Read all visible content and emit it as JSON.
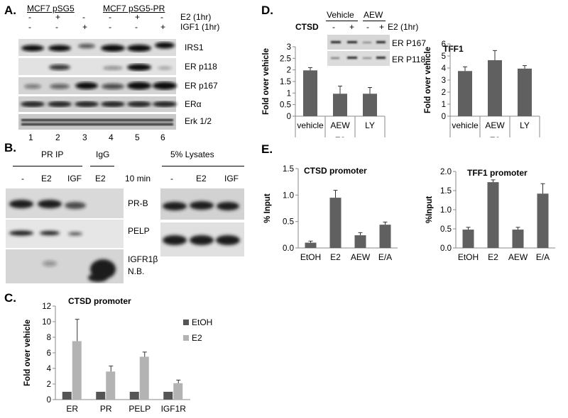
{
  "panelA": {
    "letter": "A.",
    "group1": "MCF7 pSG5",
    "group2": "MCF7 pSG5-PR",
    "row_e2_label": "E2 (1hr)",
    "row_igf_label": "IGF1 (1hr)",
    "e2_signs": [
      "-",
      "+",
      "-",
      "-",
      "+",
      "-"
    ],
    "igf_signs": [
      "-",
      "-",
      "+",
      "-",
      "-",
      "+"
    ],
    "bands": [
      "IRS1",
      "ER p118",
      "ER p167",
      "ERα",
      "Erk 1/2"
    ],
    "lanes": [
      "1",
      "2",
      "3",
      "4",
      "5",
      "6"
    ]
  },
  "panelB": {
    "letter": "B.",
    "pr_ip": "PR IP",
    "igg": "IgG",
    "lysates": "5% Lysates",
    "ip_lanes": [
      "-",
      "E2",
      "IGF"
    ],
    "igg_lane": "E2",
    "time": "10 min",
    "lys_lanes": [
      "-",
      "E2",
      "IGF"
    ],
    "bands": [
      "PR-B",
      "PELP",
      "IGFR1β"
    ],
    "nb": "N.B."
  },
  "panelC": {
    "letter": "C.",
    "chart_data": {
      "type": "bar",
      "title": "CTSD promoter",
      "ylabel": "Fold over vehicle",
      "xlabel": "",
      "categories": [
        "ER",
        "PR",
        "PELP",
        "IGF1R"
      ],
      "series": [
        {
          "name": "EtOH",
          "values": [
            1,
            1,
            1,
            1
          ],
          "errors": [
            0,
            0,
            0,
            0
          ],
          "color": "#555555"
        },
        {
          "name": "E2",
          "values": [
            7.5,
            3.6,
            5.5,
            2.1
          ],
          "errors": [
            2.8,
            0.7,
            0.6,
            0.4
          ],
          "color": "#b3b3b3"
        }
      ],
      "ylim": [
        0,
        12
      ],
      "yticks": [
        "0",
        "2",
        "4",
        "6",
        "8",
        "10",
        "12"
      ],
      "legend": "right"
    }
  },
  "panelD": {
    "letter": "D.",
    "ctsd": "CTSD",
    "vehicle": "Vehicle",
    "aew": "AEW",
    "signs": [
      "-",
      "+",
      "-",
      "+"
    ],
    "e2_label": "E2 (1hr)",
    "blot_bands": [
      "ER P167",
      "ER P118"
    ],
    "chart_data": [
      {
        "type": "bar",
        "title": "",
        "ylabel": "Fold over vehicle",
        "categories": [
          "vehicle",
          "AEW",
          "LY"
        ],
        "group_label": "E2",
        "values": [
          1.98,
          0.97,
          0.97
        ],
        "errors": [
          0.12,
          0.33,
          0.27
        ],
        "ylim": [
          0,
          3
        ],
        "yticks": [
          "0",
          "0.5",
          "1",
          "1.5",
          "2",
          "2.5",
          "3"
        ],
        "color": "#606060"
      },
      {
        "type": "bar",
        "title": "TFF1",
        "ylabel": "Fold over vehicle",
        "categories": [
          "vehicle",
          "AEW",
          "LY"
        ],
        "group_label": "E2",
        "values": [
          3.75,
          4.65,
          3.95
        ],
        "errors": [
          0.35,
          0.8,
          0.25
        ],
        "ylim": [
          0,
          6
        ],
        "yticks": [
          "0",
          "1",
          "2",
          "3",
          "4",
          "5",
          "6"
        ],
        "color": "#606060"
      }
    ]
  },
  "panelE": {
    "letter": "E.",
    "chart_data": [
      {
        "type": "bar",
        "title": "CTSD promoter",
        "ylabel": "% Input",
        "categories": [
          "EtOH",
          "E2",
          "AEW",
          "E/A"
        ],
        "values": [
          0.1,
          0.95,
          0.24,
          0.44
        ],
        "errors": [
          0.03,
          0.14,
          0.05,
          0.05
        ],
        "ylim": [
          0,
          1.5
        ],
        "yticks": [
          "0.0",
          "0.5",
          "1.0",
          "1.5"
        ],
        "color": "#606060"
      },
      {
        "type": "bar",
        "title": "TFF1 promoter",
        "ylabel": "%Input",
        "categories": [
          "EtOH",
          "E2",
          "AEW",
          "E/A"
        ],
        "values": [
          0.48,
          1.72,
          0.48,
          1.42
        ],
        "errors": [
          0.06,
          0.06,
          0.06,
          0.26
        ],
        "ylim": [
          0,
          2.0
        ],
        "yticks": [
          "0.0",
          "0.5",
          "1.0",
          "1.5",
          "2.0"
        ],
        "color": "#606060"
      }
    ]
  }
}
